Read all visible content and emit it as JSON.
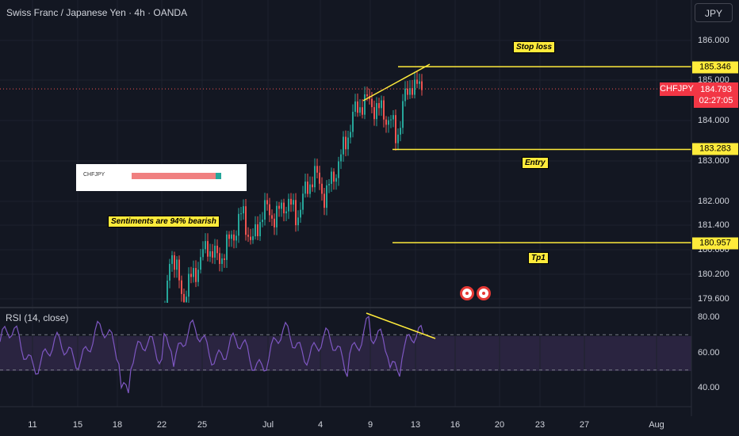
{
  "header": {
    "title": "Swiss Franc / Japanese Yen · 4h · OANDA",
    "currency_button": "JPY"
  },
  "annotations": {
    "stop_loss": "Stop loss",
    "entry": "Entry",
    "tp1": "Tp1",
    "sentiment_note": "Sentiments are 94% bearish"
  },
  "sentiment_widget": {
    "symbol": "CHFJPY",
    "bearish_fraction": 0.94
  },
  "price_tags": {
    "symbol": "CHFJPY",
    "last_price": "184.793",
    "countdown": "02:27:05",
    "stop_loss": "185.346",
    "entry": "183.283",
    "tp1": "180.957"
  },
  "rsi": {
    "label": "RSI (14, close)"
  },
  "colors": {
    "bg": "#131722",
    "up": "#26a69a",
    "down": "#ef5350",
    "level": "#ffeb3b",
    "rsi": "#7e57c2",
    "tag": "#f23645"
  },
  "chart_data": {
    "type": "candlestick",
    "y_axis": {
      "ticks": [
        "186.000",
        "185.000",
        "184.000",
        "183.000",
        "182.000",
        "181.400",
        "180.600",
        "180.200",
        "179.600"
      ]
    },
    "x_axis": {
      "ticks": [
        "11",
        "15",
        "18",
        "22",
        "25",
        "Jul",
        "4",
        "9",
        "13",
        "16",
        "20",
        "23",
        "27",
        "Aug"
      ]
    },
    "levels": [
      {
        "name": "Stop loss",
        "price": 185.346
      },
      {
        "name": "Entry",
        "price": 183.283
      },
      {
        "name": "Tp1",
        "price": 180.957
      }
    ],
    "current_price": 184.793,
    "rsi_axis": {
      "ticks": [
        "80.00",
        "60.00",
        "40.00"
      ],
      "bands": [
        70,
        50
      ]
    }
  }
}
